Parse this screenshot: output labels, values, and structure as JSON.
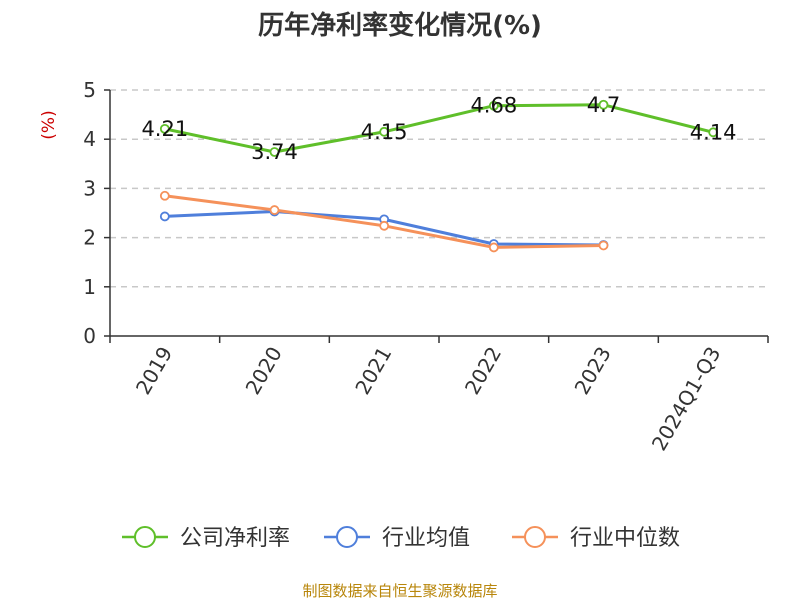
{
  "chart_data": {
    "type": "line",
    "title": "历年净利率变化情况(%)",
    "ylabel": "(%)",
    "categories": [
      "2019",
      "2020",
      "2021",
      "2022",
      "2023",
      "2024Q1-Q3"
    ],
    "ylim": [
      0,
      5
    ],
    "yticks": [
      0,
      1,
      2,
      3,
      4,
      5
    ],
    "grid": true,
    "legend_position": "bottom",
    "series": [
      {
        "name": "公司净利率",
        "color": "#5fbf2a",
        "values": [
          4.21,
          3.74,
          4.15,
          4.68,
          4.7,
          4.14
        ],
        "labels": [
          "4.21",
          "3.74",
          "4.15",
          "4.68",
          "4.7",
          "4.14"
        ]
      },
      {
        "name": "行业均值",
        "color": "#4f7fdb",
        "values": [
          2.43,
          2.53,
          2.37,
          1.87,
          1.85,
          null
        ]
      },
      {
        "name": "行业中位数",
        "color": "#f5915a",
        "values": [
          2.85,
          2.56,
          2.24,
          1.8,
          1.84,
          null
        ]
      }
    ]
  },
  "source": "制图数据来自恒生聚源数据库"
}
